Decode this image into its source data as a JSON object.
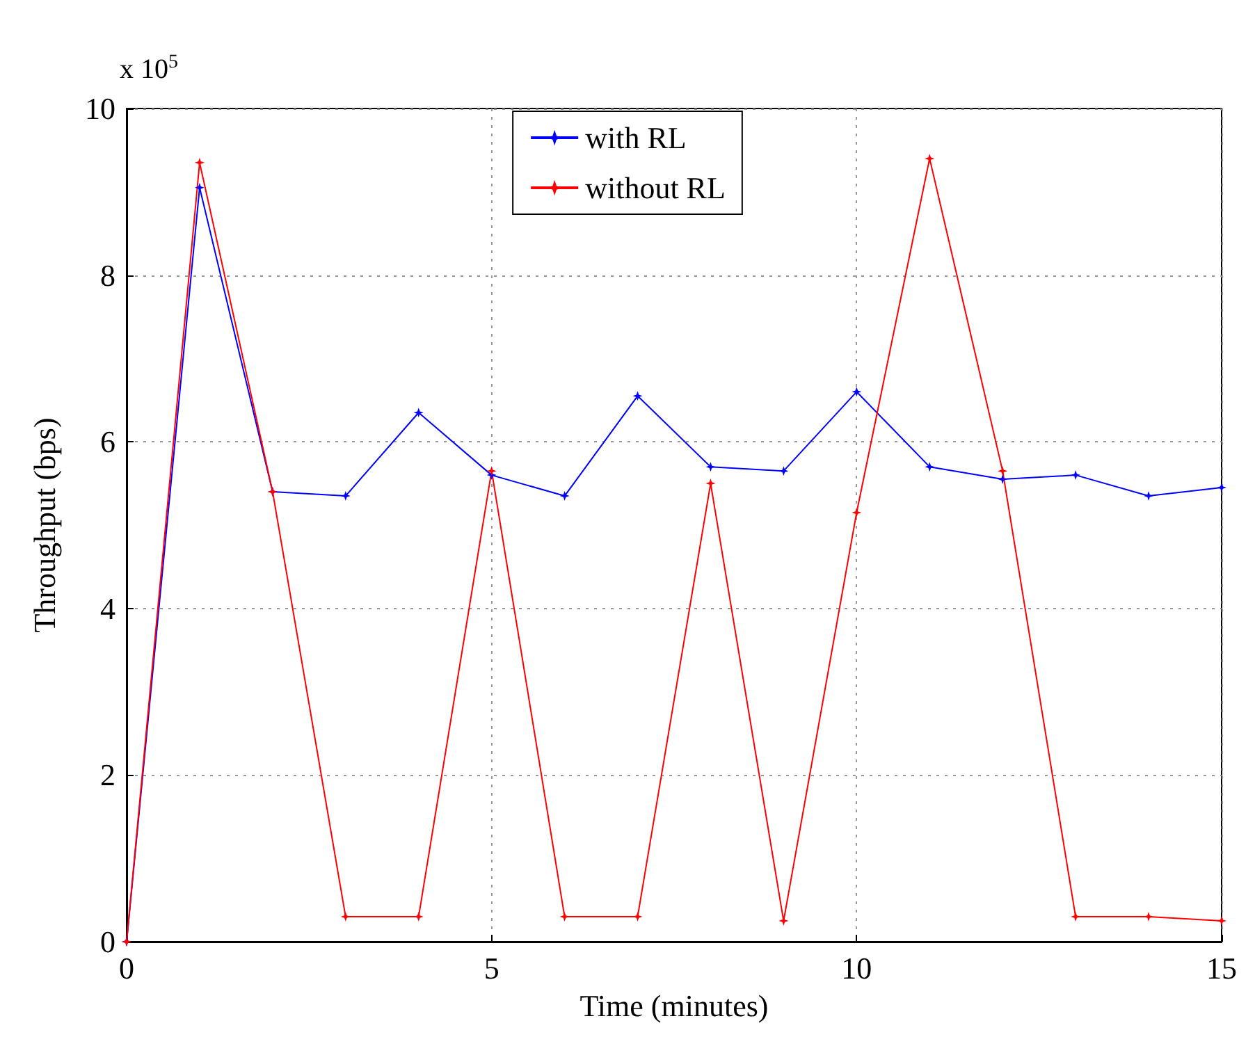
{
  "chart_data": {
    "type": "line",
    "xlabel": "Time (minutes)",
    "ylabel": "Throughput (bps)",
    "annotations": [
      "x 10$^{5}$"
    ],
    "x": [
      0,
      1,
      2,
      3,
      4,
      5,
      6,
      7,
      8,
      9,
      10,
      11,
      12,
      13,
      14,
      15
    ],
    "series": [
      {
        "name": "with RL",
        "color": "#0000ff",
        "values": [
          0,
          9.05,
          5.4,
          5.35,
          6.35,
          5.6,
          5.35,
          6.55,
          5.7,
          5.65,
          6.6,
          5.7,
          5.55,
          5.6,
          5.35,
          5.45
        ]
      },
      {
        "name": "without RL",
        "color": "#ff0000",
        "values": [
          0,
          9.35,
          5.4,
          0.3,
          0.3,
          5.65,
          0.3,
          0.3,
          5.5,
          0.25,
          5.15,
          9.4,
          5.65,
          0.3,
          0.3,
          0.25
        ]
      }
    ],
    "xlim": [
      0,
      15
    ],
    "xticks": [
      0,
      5,
      10,
      15
    ],
    "ylim": [
      0,
      10
    ],
    "yticks": [
      0,
      2,
      4,
      6,
      8,
      10
    ],
    "grid": true,
    "legend": "top",
    "marker": "star",
    "line_style": "solid"
  }
}
